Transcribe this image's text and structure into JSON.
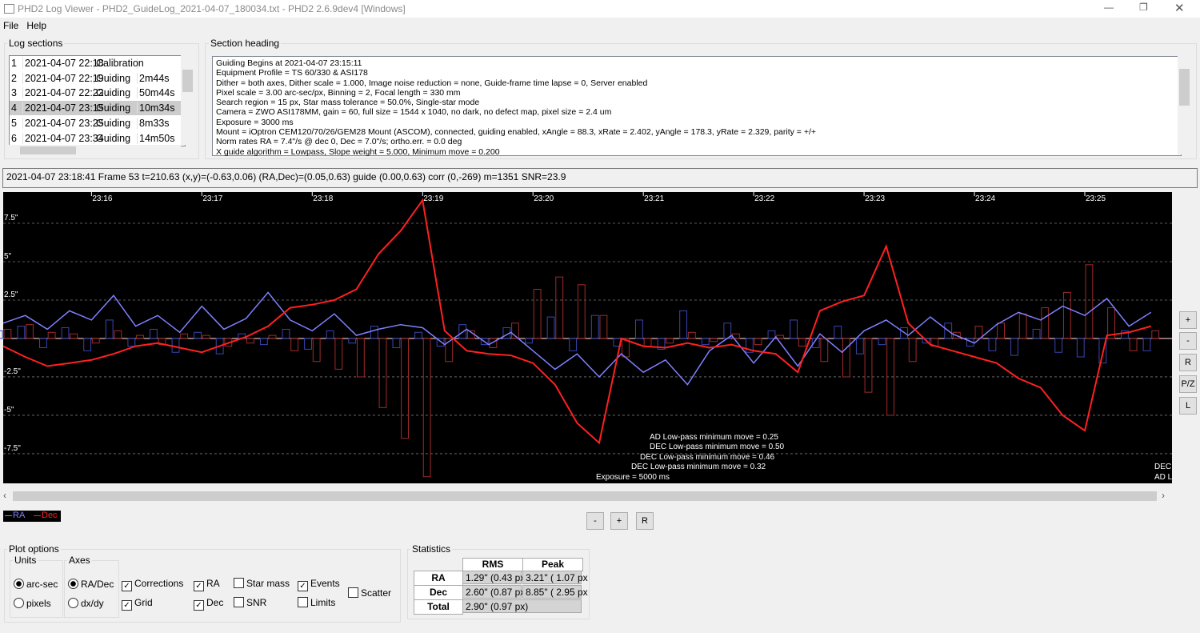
{
  "window": {
    "title": "PHD2 Log Viewer - PHD2_GuideLog_2021-04-07_180034.txt - PHD2 2.6.9dev4 [Windows]"
  },
  "menu": [
    "File",
    "Help"
  ],
  "log_sections": {
    "label": "Log sections",
    "rows": [
      {
        "cells": [
          "1",
          "2021-04-07 22:18",
          "Calibration"
        ]
      },
      {
        "cells": [
          "2",
          "2021-04-07 22:19",
          "Guiding",
          "2m44s"
        ]
      },
      {
        "cells": [
          "3",
          "2021-04-07 22:22",
          "Guiding",
          "50m44s"
        ]
      },
      {
        "cells": [
          "4",
          "2021-04-07 23:15",
          "Guiding",
          "10m34s"
        ],
        "selected": true
      },
      {
        "cells": [
          "5",
          "2021-04-07 23:25",
          "Guiding",
          "8m33s"
        ]
      },
      {
        "cells": [
          "6",
          "2021-04-07 23:34",
          "Guiding",
          "14m50s"
        ]
      }
    ]
  },
  "section_heading": {
    "label": "Section heading",
    "lines": [
      "Guiding Begins at 2021-04-07 23:15:11",
      "Equipment Profile = TS 60/330 & ASI178",
      "Dither = both axes, Dither scale = 1.000, Image noise reduction = none, Guide-frame time lapse = 0, Server enabled",
      "Pixel scale = 3.00 arc-sec/px, Binning = 2, Focal length = 330 mm",
      "Search region = 15 px, Star mass tolerance = 50.0%, Single-star mode",
      "Camera = ZWO ASI178MM, gain = 60, full size = 1544 x 1040, no dark, no defect map, pixel size = 2.4 um",
      "Exposure = 3000 ms",
      "Mount = iOptron CEM120/70/26/GEM28 Mount (ASCOM), connected, guiding enabled, xAngle = 88.3, xRate = 2.402, yAngle = 178.3, yRate = 2.329, parity = +/+",
      "Norm rates RA = 7.4\"/s @ dec 0, Dec = 7.0\"/s; ortho.err. = 0.0 deg",
      "X guide algorithm = Lowpass, Slope weight = 5.000, Minimum move = 0.200"
    ]
  },
  "status": "2021-04-07 23:18:41 Frame 53 t=210.63 (x,y)=(-0.63,0.06) (RA,Dec)=(0.05,0.63) guide (0.00,0.63) corr (0,-269) m=1351 SNR=23.9",
  "chart_data": {
    "type": "line",
    "x": [
      15.2,
      15.4,
      15.6,
      15.8,
      16.0,
      16.2,
      16.4,
      16.6,
      16.8,
      17.0,
      17.2,
      17.4,
      17.6,
      17.8,
      18.0,
      18.2,
      18.4,
      18.6,
      18.8,
      19.0,
      19.2,
      19.4,
      19.6,
      19.8,
      20.0,
      20.2,
      20.4,
      20.6,
      20.8,
      21.0,
      21.2,
      21.4,
      21.6,
      21.8,
      22.0,
      22.2,
      22.4,
      22.6,
      22.8,
      23.0,
      23.2,
      23.4,
      23.6,
      23.8,
      24.0,
      24.2,
      24.4,
      24.6,
      24.8,
      25.0,
      25.2,
      25.4,
      25.6
    ],
    "xlim": [
      15.2,
      25.79
    ],
    "xticks": [
      {
        "value": 16,
        "label": "23:16"
      },
      {
        "value": 17,
        "label": "23:17"
      },
      {
        "value": 18,
        "label": "23:18"
      },
      {
        "value": 19,
        "label": "23:19"
      },
      {
        "value": 20,
        "label": "23:20"
      },
      {
        "value": 21,
        "label": "23:21"
      },
      {
        "value": 22,
        "label": "23:22"
      },
      {
        "value": 23,
        "label": "23:23"
      },
      {
        "value": 24,
        "label": "23:24"
      },
      {
        "value": 25,
        "label": "23:25"
      }
    ],
    "ylim": [
      -9.43,
      9.53
    ],
    "yticks": [
      {
        "value": 7.5,
        "label": "7.5\""
      },
      {
        "value": 5,
        "label": "5\""
      },
      {
        "value": 2.5,
        "label": "2.5\""
      },
      {
        "value": -2.5,
        "label": "-2.5\""
      },
      {
        "value": -5,
        "label": "-5\""
      },
      {
        "value": -7.5,
        "label": "-7.5\""
      }
    ],
    "grid": true,
    "series": [
      {
        "name": "RA",
        "color": "#7f7fff",
        "values": [
          1.0,
          1.5,
          0.6,
          1.8,
          1.2,
          2.8,
          0.8,
          1.5,
          0.4,
          2.1,
          0.6,
          1.3,
          3.0,
          1.2,
          0.5,
          1.6,
          0.2,
          0.6,
          0.9,
          0.7,
          -0.4,
          0.6,
          -0.4,
          0.4,
          -0.8,
          -2.0,
          -1.0,
          -2.5,
          -1.0,
          -2.2,
          -1.4,
          -3.0,
          -0.8,
          0.2,
          -1.6,
          0.1,
          -1.8,
          0.3,
          -0.9,
          0.5,
          1.2,
          0.2,
          1.4,
          0.3,
          -0.3,
          0.9,
          1.7,
          1.2,
          2.1,
          1.5,
          2.6,
          0.8,
          1.7
        ]
      },
      {
        "name": "Dec",
        "color": "#ff2020",
        "values": [
          -0.5,
          -1.2,
          -1.8,
          -1.6,
          -1.4,
          -1.0,
          -0.5,
          -0.3,
          -0.6,
          -0.9,
          -0.4,
          0.1,
          0.8,
          2.0,
          2.2,
          2.5,
          3.2,
          5.5,
          7.0,
          9.0,
          0.5,
          -0.8,
          -1.0,
          -1.1,
          -1.6,
          -3.0,
          -5.5,
          -6.8,
          0.0,
          -0.5,
          -0.6,
          -0.3,
          -0.6,
          -0.4,
          -0.8,
          -1.0,
          -2.2,
          1.8,
          2.4,
          2.8,
          6.0,
          1.0,
          -0.4,
          -0.8,
          -1.2,
          -1.6,
          -2.6,
          -3.2,
          -5.0,
          -6.0,
          0.2,
          0.4,
          0.8
        ]
      }
    ],
    "corrections": [
      {
        "color": "#3a45b0",
        "values": [
          0.5,
          0.8,
          -0.6,
          0.7,
          -0.8,
          1.2,
          -0.5,
          0.6,
          -0.9,
          0.4,
          -1.0,
          0.3,
          -0.4,
          0.6,
          -0.7,
          0.5,
          -0.3,
          0.8,
          -0.6,
          0.4,
          -0.5,
          0.9,
          -0.4,
          0.7,
          -0.3,
          1.4,
          -0.8,
          1.5,
          -0.5,
          1.2,
          -0.7,
          1.8,
          -0.4,
          1.0,
          -0.9,
          0.5,
          1.2,
          -0.6,
          0.8,
          -1.0,
          -0.4,
          0.7,
          -0.3,
          1.0,
          -0.5,
          -0.8,
          -1.1,
          0.6,
          -0.9,
          -1.2,
          -1.6,
          0.5,
          -0.8
        ]
      },
      {
        "color": "#a02a2a",
        "values": [
          0.6,
          0.9,
          0.4,
          0.3,
          -0.3,
          0.5,
          0.2,
          -0.4,
          0.3,
          0.2,
          -0.5,
          -0.3,
          0.2,
          -0.8,
          -1.5,
          -2.0,
          -2.5,
          -4.5,
          -6.5,
          -9.0,
          -1.5,
          0.5,
          -0.6,
          1.0,
          3.2,
          4.0,
          3.5,
          1.5,
          -1.2,
          -0.5,
          -0.3,
          0.4,
          -0.2,
          0.3,
          -0.4,
          0.2,
          -0.5,
          -1.5,
          -2.5,
          -3.5,
          -5.0,
          -1.5,
          -0.5,
          0.4,
          0.8,
          1.0,
          1.6,
          2.0,
          3.0,
          4.8,
          2.0,
          -0.8,
          0.5
        ]
      }
    ],
    "annotations": [
      "AD Low-pass minimum move = 0.25",
      "DEC Low-pass minimum move = 0.50",
      "DEC Low-pass minimum move = 0.46",
      "DEC Low-pass minimum move = 0.32",
      "Exposure = 5000 ms",
      "DEC",
      "AD L"
    ]
  },
  "plot_buttons": [
    "+",
    "-",
    "R",
    "P/Z",
    "L"
  ],
  "scroll_buttons": [
    "-",
    "+",
    "R"
  ],
  "plot_options": {
    "label": "Plot options",
    "units": {
      "label": "Units",
      "options": [
        {
          "label": "arc-sec",
          "checked": true
        },
        {
          "label": "pixels"
        }
      ]
    },
    "axes": {
      "label": "Axes",
      "options": [
        {
          "label": "RA/Dec",
          "checked": true
        },
        {
          "label": "dx/dy"
        }
      ]
    },
    "checkboxes": [
      {
        "label": "Corrections",
        "checked": true
      },
      {
        "label": "Grid",
        "checked": true
      },
      {
        "label": "RA",
        "checked": true
      },
      {
        "label": "Dec",
        "checked": true
      },
      {
        "label": "Star mass"
      },
      {
        "label": "SNR"
      },
      {
        "label": "Events",
        "checked": true
      },
      {
        "label": "Limits"
      },
      {
        "label": "Scatter"
      }
    ]
  },
  "statistics": {
    "label": "Statistics",
    "header": [
      "RMS",
      "Peak"
    ],
    "rows": [
      [
        "RA",
        "1.29\" (0.43 px",
        "3.21\" ( 1.07 px"
      ],
      [
        "Dec",
        "2.60\" (0.87 px",
        "8.85\" ( 2.95 px"
      ],
      [
        "Total",
        "2.90\" (0.97 px)"
      ]
    ]
  }
}
